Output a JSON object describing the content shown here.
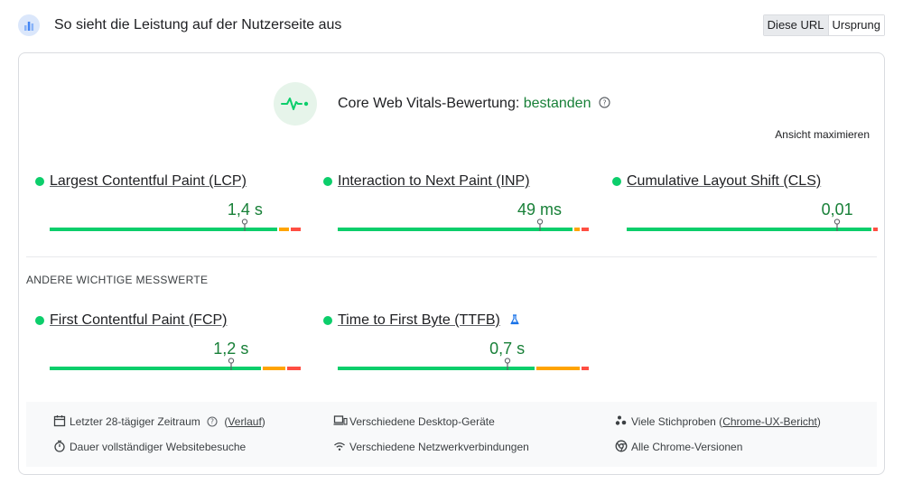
{
  "header": {
    "title": "So sieht die Leistung auf der Nutzerseite aus",
    "icon": "crux-chart-icon",
    "toggle": [
      "Diese URL",
      "Ursprung"
    ],
    "active_toggle": "Diese URL"
  },
  "assessment": {
    "label": "Core Web Vitals-Bewertung:",
    "status": "bestanden",
    "status_color": "#188038"
  },
  "maximize_label": "Ansicht maximieren",
  "core_metrics": [
    {
      "name": "Largest Contentful Paint (LCP)",
      "value": "1,4 s",
      "dist": {
        "good": 0.905,
        "ni": 0.05,
        "poor": 0.045
      }
    },
    {
      "name": "Interaction to Next Paint (INP)",
      "value": "49 ms",
      "dist": {
        "good": 0.935,
        "ni": 0.03,
        "poor": 0.035
      }
    },
    {
      "name": "Cumulative Layout Shift (CLS)",
      "value": "0,01",
      "dist": {
        "good": 0.975,
        "ni": 0.0,
        "poor": 0.025
      }
    }
  ],
  "other_section_label": "ANDERE WICHTIGE MESSWERTE",
  "other_metrics": [
    {
      "name": "First Contentful Paint (FCP)",
      "value": "1,2 s",
      "dist": {
        "good": 0.84,
        "ni": 0.1,
        "poor": 0.06
      },
      "experimental": false
    },
    {
      "name": "Time to First Byte (TTFB)",
      "value": "0,7 s",
      "dist": {
        "good": 0.785,
        "ni": 0.18,
        "poor": 0.035
      },
      "experimental": true
    }
  ],
  "colors": {
    "good": "#0cce6b",
    "ni": "#ffa400",
    "poor": "#ff4e42"
  },
  "footer": {
    "period": "Letzter 28-tägiger Zeitraum",
    "period_link": "Verlauf",
    "duration": "Dauer vollständiger Websitebesuche",
    "devices": "Verschiedene Desktop-Geräte",
    "network": "Verschiedene Netzwerkverbindungen",
    "samples": "Viele Stichproben",
    "samples_link": "Chrome-UX-Bericht",
    "versions": "Alle Chrome-Versionen"
  }
}
